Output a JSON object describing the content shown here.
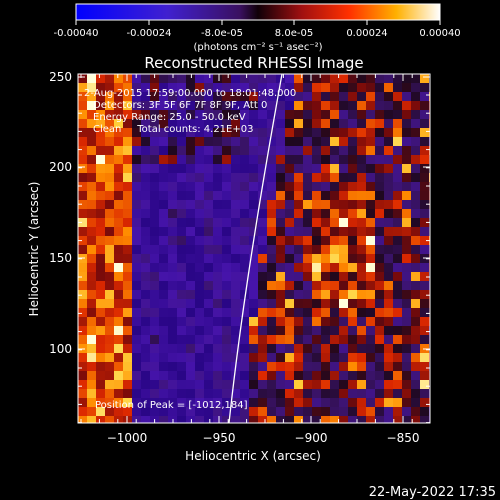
{
  "colorbar": {
    "tick_labels": [
      "-0.00040",
      "-0.00024",
      "-8.0e-05",
      "8.0e-05",
      "0.00024",
      "0.00040"
    ],
    "unit_label_html": "(photons cm⁻² s⁻¹ asec⁻²)",
    "unit_label": "(photons cm-2 s-1 asec-2)",
    "range": [
      -0.0004,
      0.0004
    ]
  },
  "title": "Reconstructed RHESSI Image",
  "info": {
    "line1": "2-Aug-2015 17:59:00.000 to 18:01:48.000",
    "line2": "Detectors: 3F 5F 6F 7F 8F 9F, Att 0",
    "line3": "Energy Range: 25.0 - 50.0 keV",
    "line4": "Clean     Total counts: 4.21E+03"
  },
  "peak_label": "Position of Peak = [-1012,184]",
  "axes": {
    "xlabel": "Heliocentric X (arcsec)",
    "ylabel": "Heliocentric Y (arcsec)",
    "xticks": [
      "−1000",
      "−950",
      "−900",
      "−850"
    ],
    "yticks": [
      "250",
      "200",
      "150",
      "100"
    ],
    "xlim": [
      -1025,
      -833
    ],
    "ylim": [
      57,
      252
    ]
  },
  "timestamp": "22-May-2022 17:35",
  "colors": {
    "background": "#000000",
    "foreground": "#ffffff"
  }
}
